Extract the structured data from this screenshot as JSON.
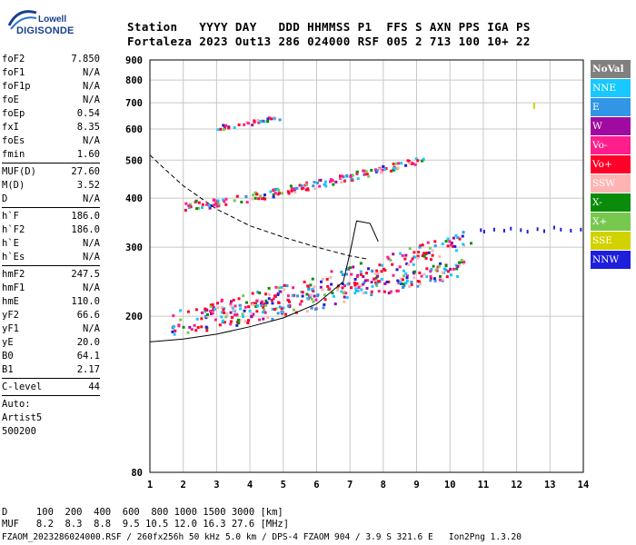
{
  "logo": {
    "line1": "Lowell",
    "line2": "DIGISONDE"
  },
  "header": {
    "line1": "Station   YYYY DAY   DDD HHMMSS P1  FFS S AXN PPS IGA PS",
    "line2": "Fortaleza 2023 Out13 286 024000 RSF 005 2 713 100 10+ 22"
  },
  "params": {
    "group1": [
      {
        "label": "foF2",
        "value": "7.850"
      },
      {
        "label": "foF1",
        "value": "N/A"
      },
      {
        "label": "foF1p",
        "value": "N/A"
      },
      {
        "label": "foE",
        "value": "N/A"
      },
      {
        "label": "foEp",
        "value": "0.54"
      },
      {
        "label": "fxI",
        "value": "8.35"
      },
      {
        "label": "foEs",
        "value": "N/A"
      },
      {
        "label": "fmin",
        "value": "1.60"
      }
    ],
    "group2": [
      {
        "label": "MUF(D)",
        "value": "27.60"
      },
      {
        "label": "M(D)",
        "value": "3.52"
      },
      {
        "label": "D",
        "value": "N/A"
      }
    ],
    "group3": [
      {
        "label": "h`F",
        "value": "186.0"
      },
      {
        "label": "h`F2",
        "value": "186.0"
      },
      {
        "label": "h`E",
        "value": "N/A"
      },
      {
        "label": "h`Es",
        "value": "N/A"
      }
    ],
    "group4": [
      {
        "label": "hmF2",
        "value": "247.5"
      },
      {
        "label": "hmF1",
        "value": "N/A"
      },
      {
        "label": "hmE",
        "value": "110.0"
      },
      {
        "label": "yF2",
        "value": "66.6"
      },
      {
        "label": "yF1",
        "value": "N/A"
      },
      {
        "label": "yE",
        "value": "20.0"
      },
      {
        "label": "B0",
        "value": "64.1"
      },
      {
        "label": "B1",
        "value": "2.17"
      }
    ],
    "group5": [
      {
        "label": "C-level",
        "value": "44"
      }
    ]
  },
  "auto": {
    "line1": "Auto:",
    "line2": "Artist5",
    "line3": "500200"
  },
  "legend": [
    {
      "label": "NoVal",
      "color": "#808080"
    },
    {
      "label": "NNE",
      "color": "#19c8ff"
    },
    {
      "label": "E",
      "color": "#3296e6"
    },
    {
      "label": "W",
      "color": "#a00aa0"
    },
    {
      "label": "Vo-",
      "color": "#ff1e8c"
    },
    {
      "label": "Vo+",
      "color": "#ff0028"
    },
    {
      "label": "SSW",
      "color": "#ffb4b4"
    },
    {
      "label": "X-",
      "color": "#0a8c0a"
    },
    {
      "label": "X+",
      "color": "#78c850"
    },
    {
      "label": "SSE",
      "color": "#d2d200"
    },
    {
      "label": "NNW",
      "color": "#1e1edc"
    }
  ],
  "bottom": {
    "line1": "D     100  200  400  600  800 1000 1500 3000 [km]",
    "line2": "MUF   8.2  8.3  8.8  9.5 10.5 12.0 16.3 27.6 [MHz]",
    "line3": "FZAOM_2023286024000.RSF / 260fx256h 50 kHz 5.0 km / DPS-4 FZAOM 904 / 3.9 S 321.6 E   Ion2Png 1.3.20"
  },
  "chart_data": {
    "type": "scatter",
    "xlabel": "",
    "ylabel": "",
    "xlim": [
      1,
      14
    ],
    "ylim": [
      80,
      900
    ],
    "x_ticks": [
      "1",
      "2",
      "3",
      "4",
      "5",
      "6",
      "7",
      "8",
      "9",
      "10",
      "11",
      "12",
      "13",
      "14"
    ],
    "y_ticks": [
      {
        "v": 80,
        "label": "80"
      },
      {
        "v": 200,
        "label": "200"
      },
      {
        "v": 300,
        "label": "300"
      },
      {
        "v": 400,
        "label": "400"
      },
      {
        "v": 500,
        "label": "500"
      },
      {
        "v": 600,
        "label": "600"
      },
      {
        "v": 700,
        "label": "700"
      },
      {
        "v": 800,
        "label": "800"
      },
      {
        "v": 900,
        "label": "900"
      }
    ],
    "scale": "log-height",
    "grid": true,
    "solid_profile": [
      [
        1,
        172
      ],
      [
        2,
        175
      ],
      [
        3,
        180
      ],
      [
        4,
        188
      ],
      [
        5,
        198
      ],
      [
        6,
        215
      ],
      [
        6.8,
        245
      ],
      [
        7.0,
        290
      ],
      [
        7.2,
        350
      ],
      [
        7.6,
        345
      ],
      [
        7.85,
        310
      ]
    ],
    "dashed_profile": [
      [
        1,
        515
      ],
      [
        1.5,
        470
      ],
      [
        2,
        430
      ],
      [
        3,
        375
      ],
      [
        4,
        340
      ],
      [
        5,
        318
      ],
      [
        6,
        300
      ],
      [
        7,
        285
      ],
      [
        7.5,
        280
      ]
    ],
    "traces": [
      {
        "name": "o-trace F1 hop",
        "x0": 1.6,
        "x1": 10.4,
        "y0": 195,
        "y1": 270,
        "spread": 14,
        "density": 260
      },
      {
        "name": "x-trace F hop",
        "x0": 2.5,
        "x1": 10.6,
        "y0": 205,
        "y1": 320,
        "spread": 16,
        "density": 200
      },
      {
        "name": "second hop",
        "x0": 2.0,
        "x1": 9.2,
        "y0": 385,
        "y1": 505,
        "spread": 10,
        "density": 170
      },
      {
        "name": "third hop",
        "x0": 3.0,
        "x1": 4.9,
        "y0": 610,
        "y1": 645,
        "spread": 10,
        "density": 30
      }
    ],
    "extra_points": [
      [
        11.0,
        332
      ],
      [
        11.3,
        336
      ],
      [
        11.6,
        334
      ],
      [
        11.8,
        338
      ],
      [
        12.1,
        335
      ],
      [
        12.3,
        332
      ],
      [
        12.6,
        337
      ],
      [
        12.8,
        333
      ],
      [
        13.1,
        340
      ],
      [
        13.3,
        336
      ],
      [
        13.6,
        334
      ],
      [
        13.9,
        336
      ],
      [
        12.5,
        700
      ],
      [
        12.5,
        690
      ],
      [
        10.9,
        335
      ]
    ]
  }
}
